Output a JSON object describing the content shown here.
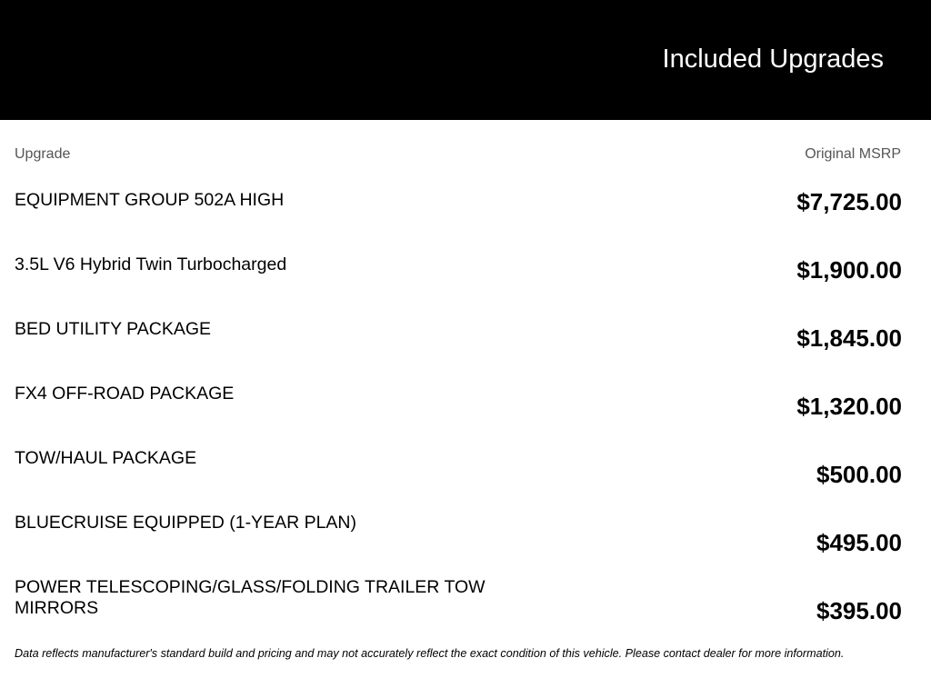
{
  "header": {
    "title": "Included Upgrades"
  },
  "table": {
    "columns": {
      "upgrade": "Upgrade",
      "msrp": "Original MSRP"
    },
    "rows": [
      {
        "name": "EQUIPMENT GROUP 502A HIGH",
        "price": "$7,725.00"
      },
      {
        "name": "3.5L V6 Hybrid Twin Turbocharged",
        "price": "$1,900.00"
      },
      {
        "name": "BED UTILITY PACKAGE",
        "price": "$1,845.00"
      },
      {
        "name": "FX4 OFF-ROAD PACKAGE",
        "price": "$1,320.00"
      },
      {
        "name": "TOW/HAUL PACKAGE",
        "price": "$500.00"
      },
      {
        "name": "BLUECRUISE EQUIPPED (1-YEAR PLAN)",
        "price": "$495.00"
      },
      {
        "name": "POWER TELESCOPING/GLASS/FOLDING TRAILER TOW MIRRORS",
        "price": "$395.00"
      }
    ]
  },
  "footer": {
    "disclaimer": "Data reflects manufacturer's standard build and pricing and may not accurately reflect the exact condition of this vehicle. Please contact dealer for more information."
  }
}
